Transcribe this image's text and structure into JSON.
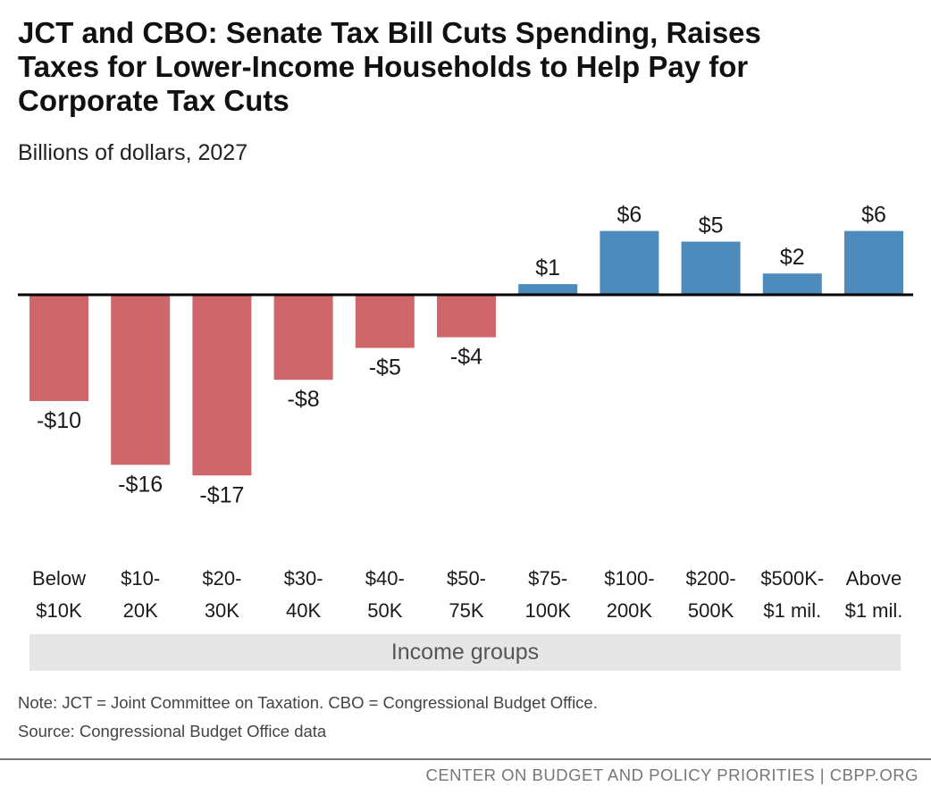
{
  "title_lines": [
    "JCT and CBO: Senate Tax Bill Cuts Spending, Raises",
    "Taxes for Lower-Income Households to Help Pay for",
    "Corporate Tax Cuts"
  ],
  "subtitle": "Billions of dollars, 2027",
  "colors": {
    "negative": "#cf666a",
    "positive": "#4e8bbd",
    "axis": "#000000",
    "band": "#e6e6e6"
  },
  "chart_data": {
    "type": "bar",
    "title": "JCT and CBO: Senate Tax Bill Cuts Spending, Raises Taxes for Lower-Income Households to Help Pay for Corporate Tax Cuts",
    "ylabel": "Billions of dollars, 2027",
    "xlabel": "Income groups",
    "categories": [
      [
        "Below",
        "$10K"
      ],
      [
        "$10-",
        "20K"
      ],
      [
        "$20-",
        "30K"
      ],
      [
        "$30-",
        "40K"
      ],
      [
        "$40-",
        "50K"
      ],
      [
        "$50-",
        "75K"
      ],
      [
        "$75-",
        "100K"
      ],
      [
        "$100-",
        "200K"
      ],
      [
        "$200-",
        "500K"
      ],
      [
        "$500K-",
        "$1 mil."
      ],
      [
        "Above",
        "$1 mil."
      ]
    ],
    "values": [
      -10,
      -16,
      -17,
      -8,
      -5,
      -4,
      1,
      6,
      5,
      2,
      6
    ],
    "value_labels": [
      "-$10",
      "-$16",
      "-$17",
      "-$8",
      "-$5",
      "-$4",
      "$1",
      "$6",
      "$5",
      "$2",
      "$6"
    ],
    "ylim": [
      -17,
      6
    ],
    "grid": false
  },
  "note": "Note: JCT = Joint Committee on Taxation.  CBO = Congressional Budget Office.",
  "source": "Source: Congressional Budget Office data",
  "footer": "CENTER ON BUDGET AND POLICY PRIORITIES | CBPP.ORG"
}
